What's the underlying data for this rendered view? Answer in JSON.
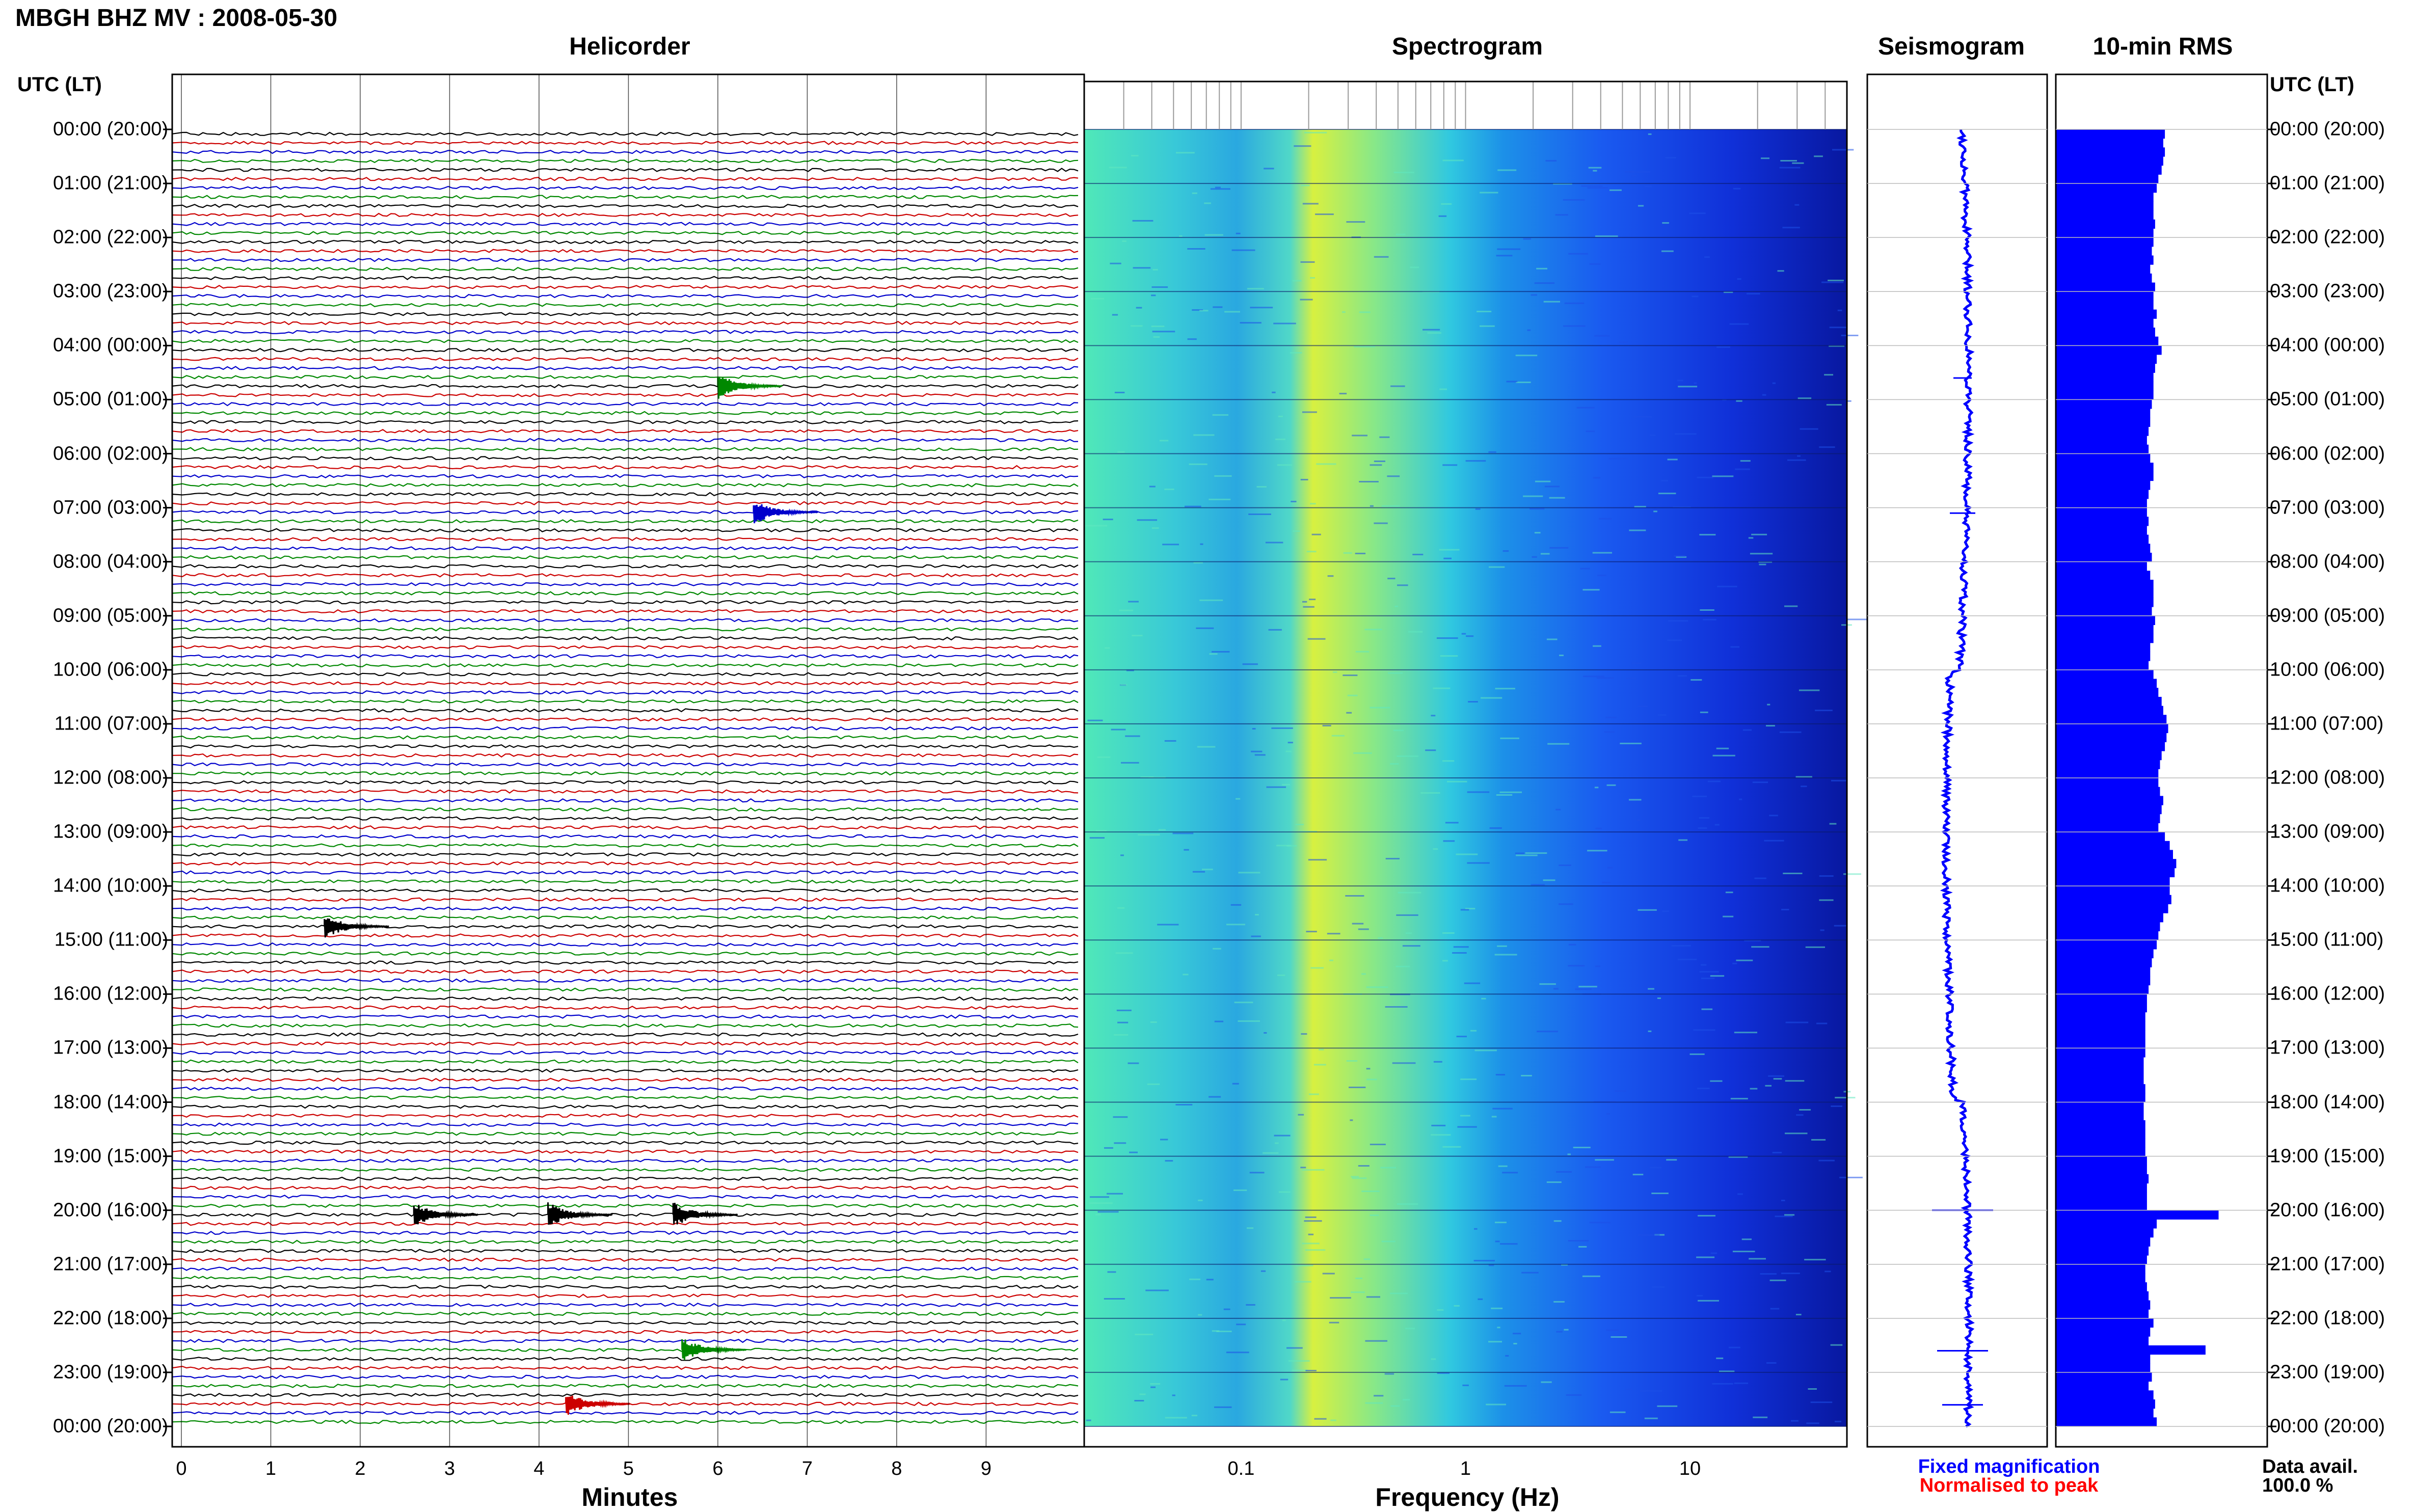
{
  "header": {
    "title": "MBGH BHZ MV : 2008-05-30"
  },
  "panels": {
    "helicorder": "Helicorder",
    "spectrogram": "Spectrogram",
    "seismogram": "Seismogram",
    "rms": "10-min RMS"
  },
  "time_axis": {
    "label": "UTC (LT)",
    "ticks": [
      "00:00 (20:00)",
      "01:00 (21:00)",
      "02:00 (22:00)",
      "03:00 (23:00)",
      "04:00 (00:00)",
      "05:00 (01:00)",
      "06:00 (02:00)",
      "07:00 (03:00)",
      "08:00 (04:00)",
      "09:00 (05:00)",
      "10:00 (06:00)",
      "11:00 (07:00)",
      "12:00 (08:00)",
      "13:00 (09:00)",
      "14:00 (10:00)",
      "15:00 (11:00)",
      "16:00 (12:00)",
      "17:00 (13:00)",
      "18:00 (14:00)",
      "19:00 (15:00)",
      "20:00 (16:00)",
      "21:00 (17:00)",
      "22:00 (18:00)",
      "23:00 (19:00)",
      "00:00 (20:00)"
    ]
  },
  "helicorder_axis": {
    "label": "Minutes",
    "ticks": [
      "0",
      "1",
      "2",
      "3",
      "4",
      "5",
      "6",
      "7",
      "8",
      "9"
    ]
  },
  "spectrogram_axis": {
    "label": "Frequency (Hz)",
    "ticks": [
      "0.1",
      "1",
      "10"
    ]
  },
  "legend": {
    "fixed": "Fixed magnification",
    "normalised": "Normalised to peak",
    "fixed_color": "#0000ff",
    "normalised_color": "#ff0000"
  },
  "data_availability": {
    "label": "Data avail.",
    "value": "100.0 %"
  },
  "colors": {
    "trace_cycle": [
      "#000000",
      "#cc0000",
      "#0000cc",
      "#008800"
    ],
    "plot_blue": "#0000ff",
    "spectrogram_low": "#40e0d0",
    "spectrogram_peak": "#d8f040",
    "spectrogram_high": "#0818a0"
  },
  "chart_data": {
    "type": "heatmap",
    "station": "MBGH BHZ MV",
    "date": "2008-05-30",
    "helicorder_events": [
      {
        "utc": "04:40",
        "minute": 6.0,
        "color_index": 3
      },
      {
        "utc": "07:00",
        "minute": 6.4,
        "color_index": 2
      },
      {
        "utc": "14:40",
        "minute": 1.6,
        "color_index": 0
      },
      {
        "utc": "20:00",
        "minute": 2.6,
        "color_index": 0
      },
      {
        "utc": "20:00",
        "minute": 4.1,
        "color_index": 0
      },
      {
        "utc": "20:00",
        "minute": 5.5,
        "color_index": 0
      },
      {
        "utc": "22:30",
        "minute": 5.6,
        "color_index": 3
      },
      {
        "utc": "23:30",
        "minute": 4.3,
        "color_index": 1
      }
    ],
    "spectrogram_xlim_hz": [
      0.02,
      50
    ],
    "spectrogram_xscale": "log",
    "spectrogram_peak_hz": 0.22,
    "rms_10min_relative": [
      0.67,
      0.66,
      0.67,
      0.66,
      0.65,
      0.63,
      0.62,
      0.6,
      0.6,
      0.6,
      0.61,
      0.6,
      0.6,
      0.59,
      0.6,
      0.58,
      0.59,
      0.61,
      0.6,
      0.6,
      0.62,
      0.6,
      0.61,
      0.63,
      0.65,
      0.62,
      0.61,
      0.6,
      0.6,
      0.6,
      0.59,
      0.58,
      0.58,
      0.57,
      0.56,
      0.57,
      0.58,
      0.6,
      0.6,
      0.58,
      0.57,
      0.56,
      0.56,
      0.57,
      0.56,
      0.57,
      0.58,
      0.59,
      0.56,
      0.58,
      0.6,
      0.6,
      0.6,
      0.59,
      0.61,
      0.6,
      0.6,
      0.58,
      0.58,
      0.57,
      0.6,
      0.62,
      0.63,
      0.65,
      0.66,
      0.68,
      0.69,
      0.68,
      0.67,
      0.65,
      0.64,
      0.63,
      0.63,
      0.64,
      0.66,
      0.65,
      0.64,
      0.63,
      0.67,
      0.7,
      0.72,
      0.74,
      0.73,
      0.7,
      0.7,
      0.71,
      0.69,
      0.66,
      0.64,
      0.63,
      0.62,
      0.6,
      0.59,
      0.58,
      0.58,
      0.57,
      0.56,
      0.56,
      0.55,
      0.55,
      0.55,
      0.55,
      0.55,
      0.54,
      0.54,
      0.54,
      0.55,
      0.55,
      0.54,
      0.54,
      0.55,
      0.55,
      0.55,
      0.55,
      0.56,
      0.56,
      0.57,
      0.56,
      0.56,
      0.56,
      1.0,
      0.62,
      0.6,
      0.58,
      0.57,
      0.56,
      0.55,
      0.55,
      0.56,
      0.57,
      0.58,
      0.57,
      0.6,
      0.58,
      0.57,
      0.92,
      0.58,
      0.58,
      0.59,
      0.57,
      0.6,
      0.61,
      0.6,
      0.62
    ]
  }
}
